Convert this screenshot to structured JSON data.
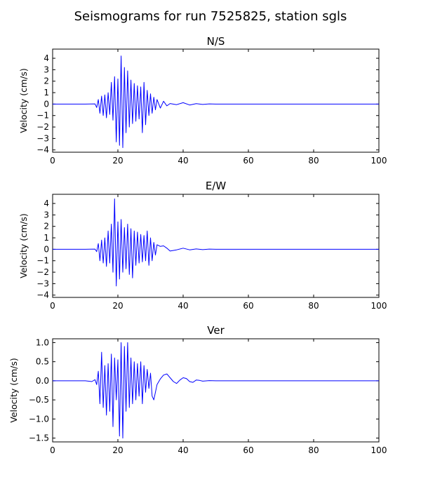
{
  "figure_title": "Seismograms for run 7525825, station sgls",
  "chart_data": [
    {
      "type": "line",
      "title": "N/S",
      "xlabel": "",
      "ylabel": "Velocity (cm/s)",
      "xlim": [
        0,
        100
      ],
      "ylim": [
        -4.2,
        4.8
      ],
      "xticks": [
        0,
        20,
        40,
        60,
        80,
        100
      ],
      "yticks": [
        -4,
        -3,
        -2,
        -1,
        0,
        1,
        2,
        3,
        4
      ],
      "series": [
        {
          "color": "#0000ff",
          "x": [
            0,
            10,
            13,
            13.5,
            14,
            14.5,
            15,
            15.5,
            16,
            16.5,
            17,
            17.5,
            18,
            18.5,
            19,
            19.5,
            20,
            20.5,
            21,
            21.5,
            22,
            22.5,
            23,
            23.5,
            24,
            24.5,
            25,
            25.5,
            26,
            26.5,
            27,
            27.5,
            28,
            28.5,
            29,
            29.5,
            30,
            30.5,
            31,
            31.5,
            32,
            33,
            34,
            35,
            36,
            38,
            40,
            42,
            44,
            46,
            48,
            50,
            60,
            80,
            100
          ],
          "y": [
            0,
            0,
            0.02,
            -0.3,
            0.4,
            -0.8,
            0.7,
            -1.0,
            0.8,
            -1.2,
            1.0,
            -0.9,
            1.9,
            -1.4,
            2.4,
            -3.3,
            2.2,
            -3.6,
            4.2,
            -3.8,
            3.2,
            -2.5,
            2.9,
            -2.0,
            2.1,
            -1.7,
            1.8,
            -1.5,
            1.6,
            -1.3,
            1.5,
            -2.5,
            1.9,
            -1.8,
            1.2,
            -1.0,
            0.9,
            -0.8,
            0.6,
            -0.5,
            0.4,
            -0.35,
            0.25,
            -0.15,
            0.05,
            -0.05,
            0.12,
            -0.08,
            0.04,
            -0.03,
            0.02,
            0,
            0,
            0,
            0
          ]
        }
      ]
    },
    {
      "type": "line",
      "title": "E/W",
      "xlabel": "",
      "ylabel": "Velocity (cm/s)",
      "xlim": [
        0,
        100
      ],
      "ylim": [
        -4.2,
        4.8
      ],
      "xticks": [
        0,
        20,
        40,
        60,
        80,
        100
      ],
      "yticks": [
        -4,
        -3,
        -2,
        -1,
        0,
        1,
        2,
        3,
        4
      ],
      "series": [
        {
          "color": "#0000ff",
          "x": [
            0,
            10,
            13,
            13.5,
            14,
            14.5,
            15,
            15.5,
            16,
            16.5,
            17,
            17.5,
            18,
            18.5,
            19,
            19.5,
            20,
            20.5,
            21,
            21.5,
            22,
            22.5,
            23,
            23.5,
            24,
            24.5,
            25,
            25.5,
            26,
            26.5,
            27,
            27.5,
            28,
            28.5,
            29,
            29.5,
            30,
            30.5,
            31,
            31.5,
            32,
            33,
            34,
            35,
            36,
            38,
            40,
            42,
            44,
            46,
            48,
            50,
            60,
            80,
            100
          ],
          "y": [
            0,
            0,
            0.02,
            -0.2,
            0.5,
            -1.0,
            0.8,
            -1.2,
            1.0,
            -1.5,
            1.6,
            -1.2,
            2.2,
            -2.0,
            4.4,
            -3.2,
            2.4,
            -2.6,
            2.6,
            -2.0,
            1.9,
            -1.7,
            2.2,
            -2.2,
            1.8,
            -2.5,
            1.6,
            -1.4,
            1.5,
            -1.2,
            1.3,
            -1.1,
            1.2,
            -1.0,
            1.6,
            -1.4,
            1.0,
            -1.0,
            0.6,
            -0.5,
            0.4,
            0.25,
            0.3,
            0.1,
            -0.15,
            -0.05,
            0.1,
            -0.05,
            0.03,
            -0.03,
            0.02,
            0,
            0,
            0,
            0
          ]
        }
      ]
    },
    {
      "type": "line",
      "title": "Ver",
      "xlabel": "",
      "ylabel": "Velocity (cm/s)",
      "xlim": [
        0,
        100
      ],
      "ylim": [
        -1.6,
        1.1
      ],
      "xticks": [
        0,
        20,
        40,
        60,
        80,
        100
      ],
      "yticks": [
        -1.5,
        -1.0,
        -0.5,
        0.0,
        0.5,
        1.0
      ],
      "series": [
        {
          "color": "#0000ff",
          "x": [
            0,
            10,
            12,
            13,
            13.5,
            14,
            14.5,
            15,
            15.5,
            16,
            16.5,
            17,
            17.5,
            18,
            18.5,
            19,
            19.5,
            20,
            20.5,
            21,
            21.5,
            22,
            22.5,
            23,
            23.5,
            24,
            24.5,
            25,
            25.5,
            26,
            26.5,
            27,
            27.5,
            28,
            28.5,
            29,
            29.5,
            30,
            30.5,
            31,
            32,
            33,
            34,
            35,
            36,
            37,
            38,
            39,
            40,
            41,
            42,
            43,
            44,
            45,
            46,
            48,
            50,
            60,
            80,
            100
          ],
          "y": [
            0,
            0,
            -0.02,
            0.03,
            -0.1,
            0.25,
            -0.6,
            0.75,
            -0.7,
            0.4,
            -0.9,
            0.45,
            -0.8,
            0.7,
            -1.2,
            0.6,
            -0.5,
            0.55,
            -1.45,
            1.0,
            -1.5,
            0.9,
            -0.8,
            1.0,
            -0.7,
            0.6,
            -0.6,
            0.5,
            -0.5,
            0.45,
            -0.4,
            0.5,
            -0.6,
            0.4,
            -0.3,
            0.3,
            -0.2,
            0.2,
            -0.4,
            -0.5,
            -0.1,
            0.05,
            0.15,
            0.18,
            0.08,
            -0.02,
            -0.07,
            0.02,
            0.08,
            0.06,
            -0.02,
            -0.04,
            0.02,
            0.01,
            -0.01,
            0.005,
            0,
            0,
            0,
            0
          ]
        }
      ]
    }
  ]
}
